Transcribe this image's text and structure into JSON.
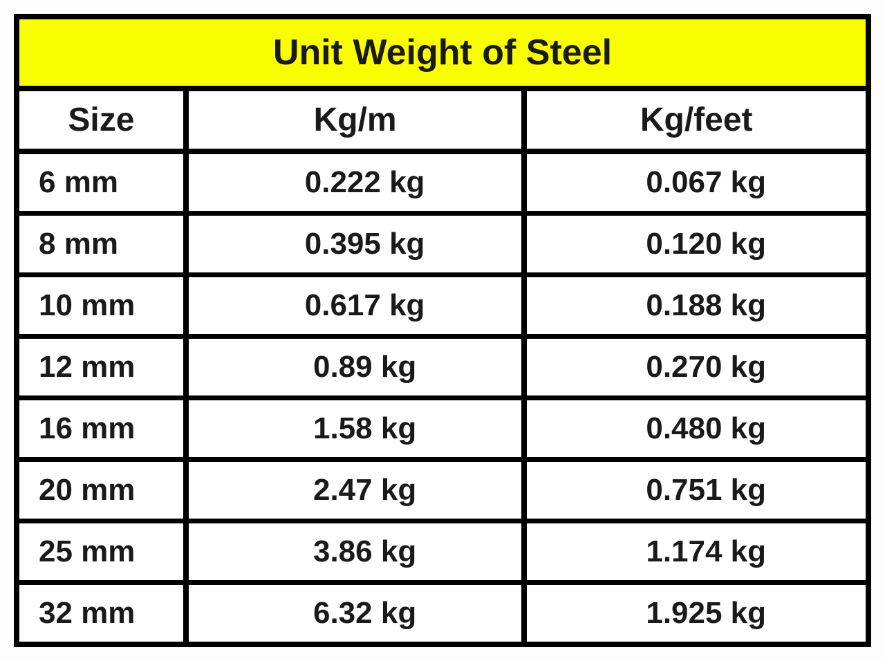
{
  "table": {
    "title": "Unit Weight of Steel",
    "columns": [
      "Size",
      "Kg/m",
      "Kg/feet"
    ],
    "rows": [
      [
        "6 mm",
        "0.222 kg",
        "0.067 kg"
      ],
      [
        "8 mm",
        "0.395 kg",
        "0.120 kg"
      ],
      [
        "10 mm",
        "0.617 kg",
        "0.188 kg"
      ],
      [
        "12 mm",
        "0.89  kg",
        "0.270 kg"
      ],
      [
        "16 mm",
        "1.58 kg",
        "0.480 kg"
      ],
      [
        "20 mm",
        "2.47 kg",
        "0.751 kg"
      ],
      [
        "25 mm",
        "3.86 kg",
        "1.174 kg"
      ],
      [
        "32 mm",
        "6.32 kg",
        "1.925 kg"
      ]
    ],
    "style": {
      "title_bg": "#faff00",
      "title_fontsize": 52,
      "header_fontsize": 48,
      "cell_fontsize": 44,
      "border_color": "#000000",
      "outer_border_width": 8,
      "inner_border_width": 7,
      "background_color": "#ffffff",
      "text_color": "#1a1a1a",
      "font_weight": 700,
      "col_widths_pct": [
        20,
        40,
        40
      ],
      "col_align": [
        "left",
        "center",
        "center"
      ]
    }
  }
}
